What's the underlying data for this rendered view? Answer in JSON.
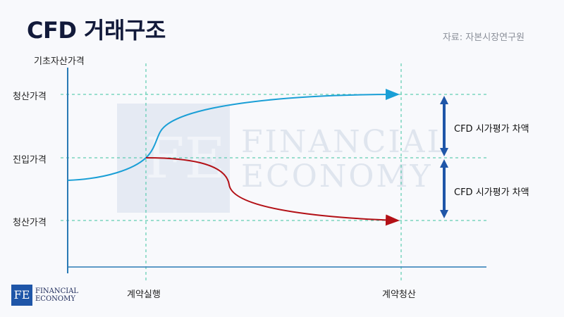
{
  "header": {
    "title": "CFD 거래구조",
    "source": "자료: 자본시장연구원"
  },
  "axes": {
    "y_title": "기초자산가격",
    "y_labels": {
      "settle_top": "청산가격",
      "entry": "진입가격",
      "settle_bottom": "청산가격"
    },
    "x_labels": {
      "contract_exec": "계약실행",
      "contract_settle": "계약청산"
    }
  },
  "annotations": {
    "diff_upper": "CFD 시가평가 차액",
    "diff_lower": "CFD 시가평가 차액"
  },
  "watermark": {
    "line1": "FINANCIAL",
    "line2": "ECONOMY",
    "mono": "FE"
  },
  "logo": {
    "mono": "FE",
    "line1": "FINANCIAL",
    "line2": "ECONOMY"
  },
  "colors": {
    "up_curve": "#1a9fd6",
    "down_curve": "#b31016",
    "axis": "#2a7ab5",
    "guide": "#3cc4a0",
    "arrow": "#1f56a8"
  }
}
